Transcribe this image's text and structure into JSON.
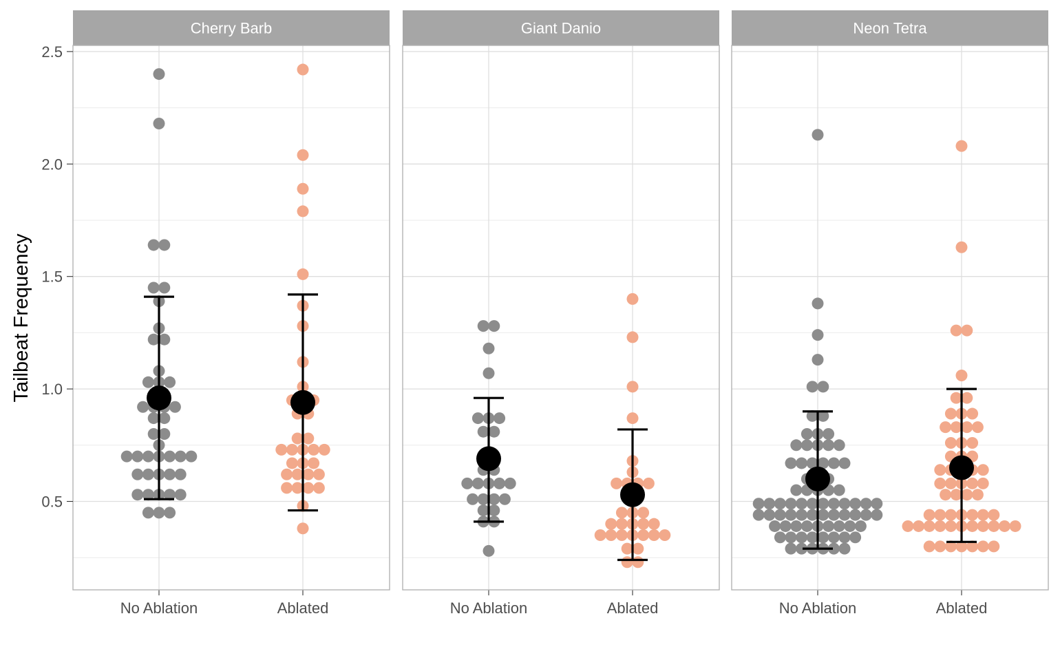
{
  "chart_data": {
    "type": "scatter",
    "subtype": "faceted dot plot (beeswarm) with mean and error bars",
    "ylabel": "Tailbeat Frequency",
    "xlabel": "",
    "ylim": [
      0.2,
      2.6
    ],
    "yticks": [
      0.5,
      1.0,
      1.5,
      2.0,
      2.5
    ],
    "ytick_labels": [
      "0.5",
      "1.0",
      "1.5",
      "2.0",
      "2.5"
    ],
    "categories": [
      "No Ablation",
      "Ablated"
    ],
    "grid": true,
    "colors": {
      "No Ablation": "#8c8c8c",
      "Ablated": "#f2a98b",
      "summary": "#000000",
      "strip": "#a6a6a6",
      "strip_text": "#ffffff"
    },
    "facets": [
      {
        "title": "Cherry Barb",
        "groups": [
          {
            "name": "No Ablation",
            "mean": 0.96,
            "upper": 1.41,
            "lower": 0.51,
            "points": [
              0.45,
              0.45,
              0.45,
              0.53,
              0.53,
              0.53,
              0.53,
              0.53,
              0.62,
              0.62,
              0.62,
              0.62,
              0.62,
              0.7,
              0.7,
              0.7,
              0.7,
              0.7,
              0.7,
              0.7,
              0.75,
              0.8,
              0.8,
              0.87,
              0.87,
              0.92,
              0.92,
              0.92,
              0.92,
              0.98,
              1.03,
              1.03,
              1.03,
              1.08,
              1.22,
              1.22,
              1.27,
              1.39,
              1.45,
              1.45,
              1.64,
              1.64,
              2.18,
              2.4
            ]
          },
          {
            "name": "Ablated",
            "mean": 0.94,
            "upper": 1.42,
            "lower": 0.46,
            "points": [
              0.38,
              0.48,
              0.56,
              0.56,
              0.56,
              0.56,
              0.62,
              0.62,
              0.62,
              0.62,
              0.67,
              0.67,
              0.67,
              0.73,
              0.73,
              0.73,
              0.73,
              0.73,
              0.78,
              0.78,
              0.89,
              0.89,
              0.95,
              0.95,
              0.95,
              1.01,
              1.12,
              1.28,
              1.37,
              1.51,
              1.79,
              1.89,
              2.04,
              2.42
            ]
          }
        ]
      },
      {
        "title": "Giant Danio",
        "groups": [
          {
            "name": "No Ablation",
            "mean": 0.69,
            "upper": 0.96,
            "lower": 0.41,
            "points": [
              0.28,
              0.41,
              0.41,
              0.46,
              0.46,
              0.51,
              0.51,
              0.51,
              0.51,
              0.58,
              0.58,
              0.58,
              0.58,
              0.58,
              0.64,
              0.64,
              0.72,
              0.81,
              0.81,
              0.87,
              0.87,
              0.87,
              1.07,
              1.18,
              1.28,
              1.28
            ]
          },
          {
            "name": "Ablated",
            "mean": 0.53,
            "upper": 0.82,
            "lower": 0.24,
            "points": [
              0.23,
              0.23,
              0.29,
              0.29,
              0.35,
              0.35,
              0.35,
              0.35,
              0.35,
              0.35,
              0.35,
              0.4,
              0.4,
              0.4,
              0.4,
              0.4,
              0.45,
              0.45,
              0.45,
              0.52,
              0.52,
              0.58,
              0.58,
              0.58,
              0.58,
              0.63,
              0.68,
              0.87,
              1.01,
              1.23,
              1.4
            ]
          }
        ]
      },
      {
        "title": "Neon Tetra",
        "groups": [
          {
            "name": "No Ablation",
            "mean": 0.6,
            "upper": 0.9,
            "lower": 0.29,
            "points": [
              0.29,
              0.29,
              0.29,
              0.29,
              0.29,
              0.29,
              0.34,
              0.34,
              0.34,
              0.34,
              0.34,
              0.34,
              0.34,
              0.34,
              0.39,
              0.39,
              0.39,
              0.39,
              0.39,
              0.39,
              0.39,
              0.39,
              0.39,
              0.44,
              0.44,
              0.44,
              0.44,
              0.44,
              0.44,
              0.44,
              0.44,
              0.44,
              0.44,
              0.44,
              0.44,
              0.49,
              0.49,
              0.49,
              0.49,
              0.49,
              0.49,
              0.49,
              0.49,
              0.49,
              0.49,
              0.49,
              0.49,
              0.55,
              0.55,
              0.55,
              0.55,
              0.55,
              0.6,
              0.6,
              0.6,
              0.67,
              0.67,
              0.67,
              0.67,
              0.67,
              0.67,
              0.75,
              0.75,
              0.75,
              0.75,
              0.75,
              0.8,
              0.8,
              0.8,
              0.88,
              0.88,
              1.01,
              1.01,
              1.13,
              1.24,
              1.38,
              2.13
            ]
          },
          {
            "name": "Ablated",
            "mean": 0.65,
            "upper": 1.0,
            "lower": 0.32,
            "points": [
              0.3,
              0.3,
              0.3,
              0.3,
              0.3,
              0.3,
              0.3,
              0.39,
              0.39,
              0.39,
              0.39,
              0.39,
              0.39,
              0.39,
              0.39,
              0.39,
              0.39,
              0.39,
              0.44,
              0.44,
              0.44,
              0.44,
              0.44,
              0.44,
              0.44,
              0.53,
              0.53,
              0.53,
              0.53,
              0.58,
              0.58,
              0.58,
              0.58,
              0.58,
              0.64,
              0.64,
              0.64,
              0.64,
              0.64,
              0.7,
              0.7,
              0.7,
              0.76,
              0.76,
              0.76,
              0.83,
              0.83,
              0.83,
              0.83,
              0.89,
              0.89,
              0.89,
              0.96,
              0.96,
              1.06,
              1.26,
              1.26,
              1.63,
              2.08
            ]
          }
        ]
      }
    ]
  }
}
